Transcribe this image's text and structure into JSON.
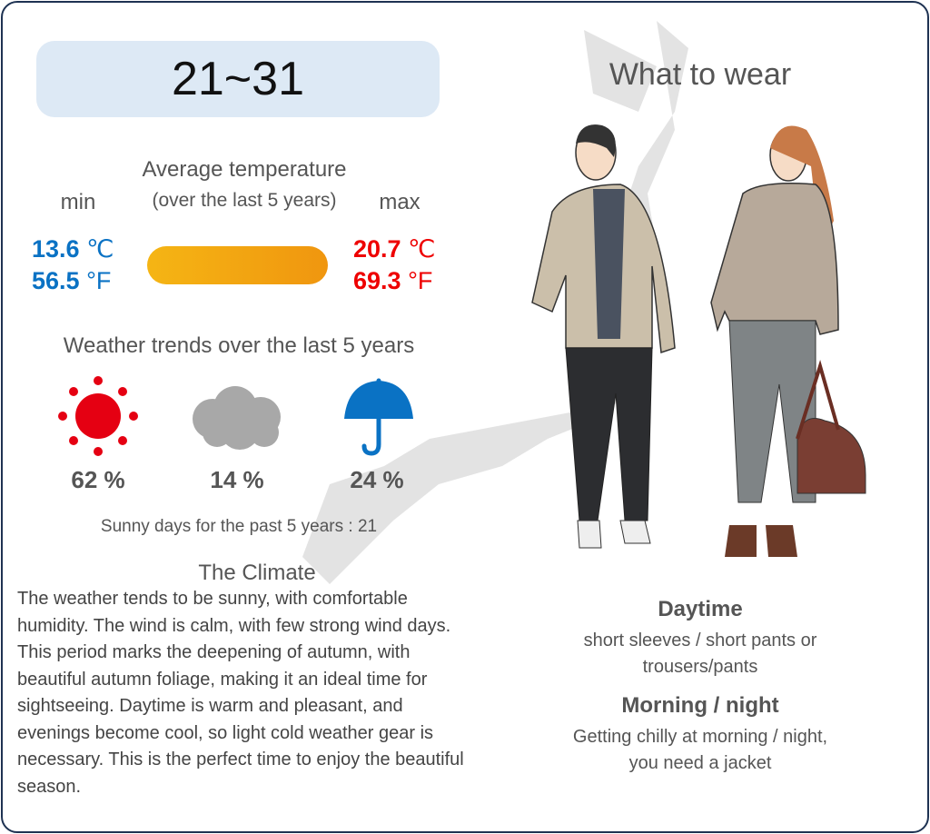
{
  "range_title": "21~31",
  "avg_temp": {
    "title": "Average temperature",
    "subtitle": "(over the last 5 years)",
    "min_label": "min",
    "max_label": "max",
    "min_c": "13.6",
    "min_f": "56.5",
    "max_c": "20.7",
    "max_f": "69.3",
    "unit_c": "℃",
    "unit_f": "°F",
    "min_color": "#0a72c4",
    "max_color": "#ee0000"
  },
  "trends": {
    "title": "Weather trends over the last 5 years",
    "items": [
      {
        "icon": "sun-icon",
        "value": "62 %"
      },
      {
        "icon": "cloud-icon",
        "value": "14 %"
      },
      {
        "icon": "umbrella-icon",
        "value": "24 %"
      }
    ],
    "sunny_days": "Sunny days for the past 5 years : 21"
  },
  "climate": {
    "title": "The Climate",
    "text": "The weather tends to be sunny, with comfortable humidity. The wind is calm, with few strong wind days. This period marks the deepening of autumn, with beautiful autumn foliage, making it an ideal time for sightseeing. Daytime is warm and pleasant, and evenings become cool, so light cold weather gear is necessary. This is the perfect time to enjoy the beautiful season."
  },
  "wear": {
    "title": "What to wear",
    "daytime_label": "Daytime",
    "daytime_line1": "short sleeves / short pants or",
    "daytime_line2": "trousers/pants",
    "night_label": "Morning / night",
    "night_line1": "Getting chilly at morning / night,",
    "night_line2": "you need a jacket"
  }
}
